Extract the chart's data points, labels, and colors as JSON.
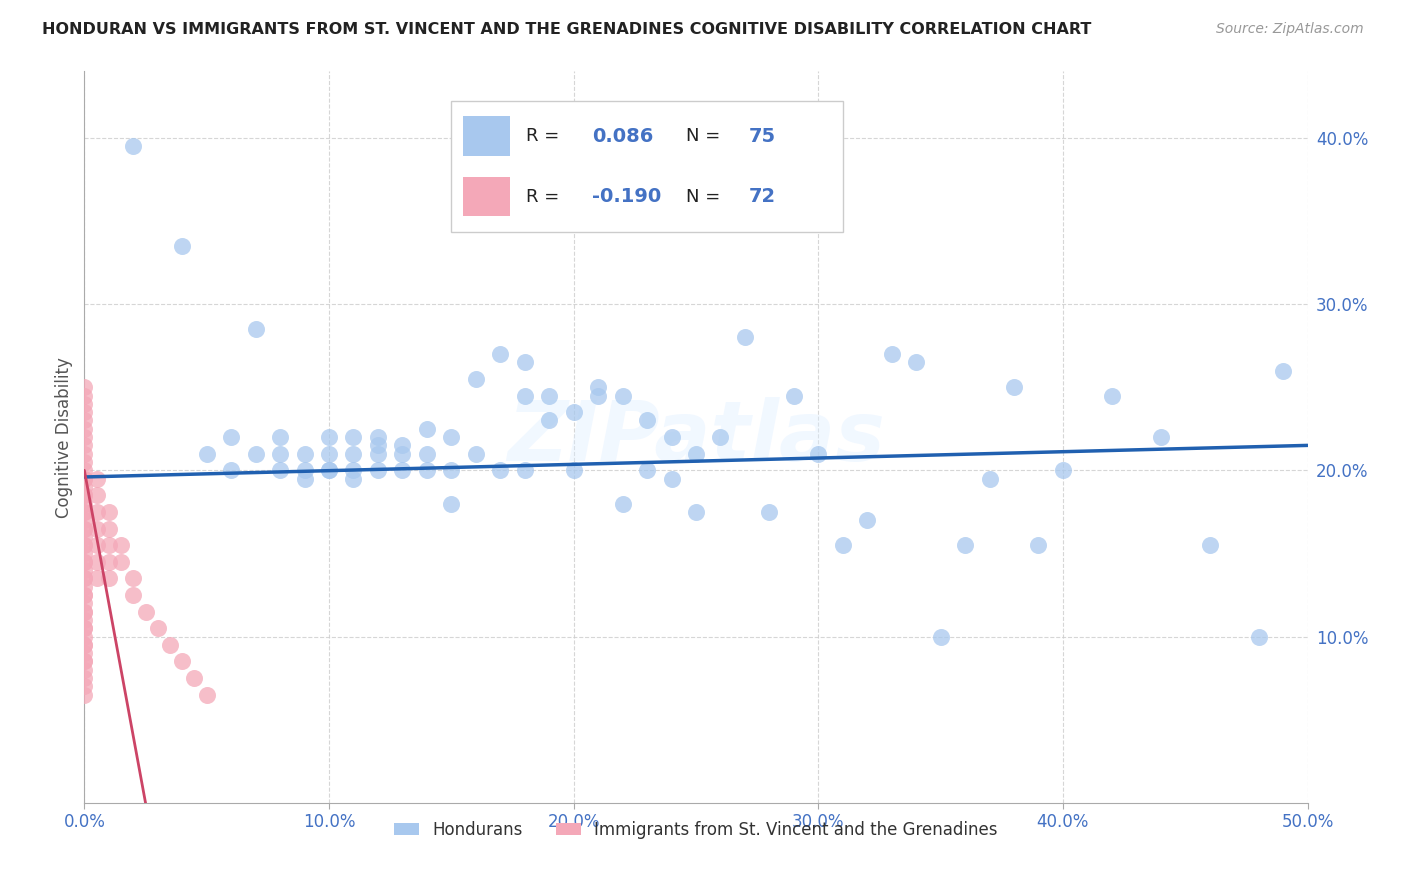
{
  "title": "HONDURAN VS IMMIGRANTS FROM ST. VINCENT AND THE GRENADINES COGNITIVE DISABILITY CORRELATION CHART",
  "source": "Source: ZipAtlas.com",
  "ylabel": "Cognitive Disability",
  "xlim": [
    0.0,
    0.5
  ],
  "ylim": [
    0.0,
    0.44
  ],
  "xticks": [
    0.0,
    0.1,
    0.2,
    0.3,
    0.4,
    0.5
  ],
  "yticks": [
    0.1,
    0.2,
    0.3,
    0.4
  ],
  "ytick_labels": [
    "10.0%",
    "20.0%",
    "30.0%",
    "40.0%"
  ],
  "xtick_labels": [
    "0.0%",
    "10.0%",
    "20.0%",
    "30.0%",
    "40.0%",
    "50.0%"
  ],
  "R_blue": 0.086,
  "N_blue": 75,
  "R_pink": -0.19,
  "N_pink": 72,
  "blue_color": "#A8C8EE",
  "pink_color": "#F4A8B8",
  "blue_line_color": "#2060B0",
  "pink_line_color": "#E8A0B0",
  "watermark": "ZIPatlas",
  "blue_scatter_x": [
    0.02,
    0.04,
    0.05,
    0.06,
    0.06,
    0.07,
    0.07,
    0.08,
    0.08,
    0.08,
    0.09,
    0.09,
    0.09,
    0.1,
    0.1,
    0.1,
    0.1,
    0.11,
    0.11,
    0.11,
    0.11,
    0.12,
    0.12,
    0.12,
    0.12,
    0.13,
    0.13,
    0.13,
    0.14,
    0.14,
    0.14,
    0.15,
    0.15,
    0.15,
    0.16,
    0.16,
    0.17,
    0.17,
    0.18,
    0.18,
    0.18,
    0.19,
    0.19,
    0.2,
    0.2,
    0.21,
    0.21,
    0.22,
    0.22,
    0.23,
    0.23,
    0.24,
    0.24,
    0.25,
    0.25,
    0.26,
    0.27,
    0.28,
    0.29,
    0.3,
    0.31,
    0.32,
    0.33,
    0.34,
    0.35,
    0.36,
    0.37,
    0.38,
    0.39,
    0.4,
    0.42,
    0.44,
    0.46,
    0.48,
    0.49
  ],
  "blue_scatter_y": [
    0.395,
    0.335,
    0.21,
    0.2,
    0.22,
    0.21,
    0.285,
    0.21,
    0.2,
    0.22,
    0.2,
    0.21,
    0.195,
    0.2,
    0.21,
    0.22,
    0.2,
    0.21,
    0.2,
    0.22,
    0.195,
    0.22,
    0.21,
    0.2,
    0.215,
    0.215,
    0.2,
    0.21,
    0.225,
    0.21,
    0.2,
    0.22,
    0.2,
    0.18,
    0.255,
    0.21,
    0.27,
    0.2,
    0.245,
    0.2,
    0.265,
    0.245,
    0.23,
    0.2,
    0.235,
    0.25,
    0.245,
    0.245,
    0.18,
    0.23,
    0.2,
    0.22,
    0.195,
    0.175,
    0.21,
    0.22,
    0.28,
    0.175,
    0.245,
    0.21,
    0.155,
    0.17,
    0.27,
    0.265,
    0.1,
    0.155,
    0.195,
    0.25,
    0.155,
    0.2,
    0.245,
    0.22,
    0.155,
    0.1,
    0.26
  ],
  "pink_scatter_x": [
    0.0,
    0.0,
    0.0,
    0.0,
    0.0,
    0.0,
    0.0,
    0.0,
    0.0,
    0.0,
    0.0,
    0.0,
    0.0,
    0.0,
    0.0,
    0.0,
    0.0,
    0.0,
    0.0,
    0.0,
    0.0,
    0.0,
    0.0,
    0.0,
    0.0,
    0.0,
    0.0,
    0.0,
    0.0,
    0.0,
    0.0,
    0.0,
    0.0,
    0.0,
    0.0,
    0.0,
    0.0,
    0.0,
    0.0,
    0.0,
    0.0,
    0.0,
    0.0,
    0.0,
    0.0,
    0.0,
    0.0,
    0.0,
    0.0,
    0.0,
    0.005,
    0.005,
    0.005,
    0.005,
    0.005,
    0.005,
    0.005,
    0.01,
    0.01,
    0.01,
    0.01,
    0.01,
    0.015,
    0.015,
    0.02,
    0.02,
    0.025,
    0.03,
    0.035,
    0.04,
    0.045,
    0.05
  ],
  "pink_scatter_y": [
    0.25,
    0.245,
    0.24,
    0.235,
    0.23,
    0.225,
    0.22,
    0.215,
    0.21,
    0.205,
    0.2,
    0.195,
    0.19,
    0.185,
    0.18,
    0.175,
    0.17,
    0.165,
    0.16,
    0.155,
    0.15,
    0.145,
    0.14,
    0.135,
    0.13,
    0.125,
    0.12,
    0.115,
    0.11,
    0.105,
    0.1,
    0.095,
    0.09,
    0.085,
    0.08,
    0.075,
    0.07,
    0.065,
    0.195,
    0.185,
    0.175,
    0.165,
    0.155,
    0.145,
    0.135,
    0.125,
    0.115,
    0.105,
    0.095,
    0.085,
    0.195,
    0.185,
    0.175,
    0.165,
    0.155,
    0.145,
    0.135,
    0.175,
    0.165,
    0.155,
    0.145,
    0.135,
    0.155,
    0.145,
    0.135,
    0.125,
    0.115,
    0.105,
    0.095,
    0.085,
    0.075,
    0.065
  ]
}
